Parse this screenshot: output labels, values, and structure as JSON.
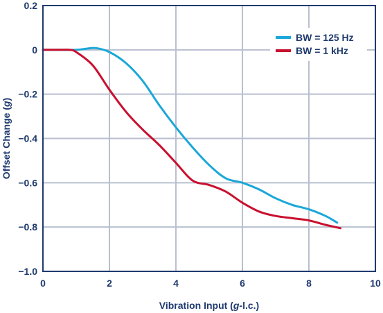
{
  "chart_data": {
    "type": "line",
    "xlabel_parts": [
      "Vibration Input (",
      "g",
      "-l.c.)"
    ],
    "ylabel_parts": [
      "Offset Change (",
      "g",
      ")"
    ],
    "xlim": [
      0,
      10
    ],
    "ylim": [
      -1.0,
      0.2
    ],
    "xticks": [
      "0",
      "2",
      "4",
      "6",
      "8",
      "10"
    ],
    "yticks": [
      "0.2",
      "0",
      "−0.2",
      "−0.4",
      "−0.6",
      "−0.8",
      "−1.0"
    ],
    "grid": true,
    "legend_position": "top-right",
    "series": [
      {
        "name": "BW = 125 Hz",
        "color": "#1aa7d8",
        "x": [
          0,
          0.5,
          1.0,
          1.3,
          1.6,
          2.0,
          2.5,
          3.0,
          3.5,
          4.0,
          4.5,
          5.0,
          5.5,
          6.0,
          6.5,
          7.0,
          7.5,
          8.0,
          8.5,
          8.85
        ],
        "y": [
          0.0,
          0.0,
          0.0,
          0.005,
          0.008,
          -0.01,
          -0.06,
          -0.14,
          -0.25,
          -0.35,
          -0.44,
          -0.52,
          -0.58,
          -0.6,
          -0.63,
          -0.67,
          -0.7,
          -0.72,
          -0.75,
          -0.78
        ]
      },
      {
        "name": "BW = 1 kHz",
        "color": "#c8102e",
        "x": [
          0,
          0.5,
          0.8,
          1.0,
          1.5,
          2.0,
          2.5,
          3.0,
          3.5,
          4.0,
          4.5,
          5.0,
          5.5,
          6.0,
          6.5,
          7.0,
          7.5,
          8.0,
          8.5,
          8.95
        ],
        "y": [
          0.0,
          0.0,
          0.0,
          -0.01,
          -0.07,
          -0.18,
          -0.28,
          -0.36,
          -0.43,
          -0.51,
          -0.59,
          -0.61,
          -0.64,
          -0.69,
          -0.73,
          -0.75,
          -0.76,
          -0.77,
          -0.79,
          -0.805
        ]
      }
    ]
  }
}
